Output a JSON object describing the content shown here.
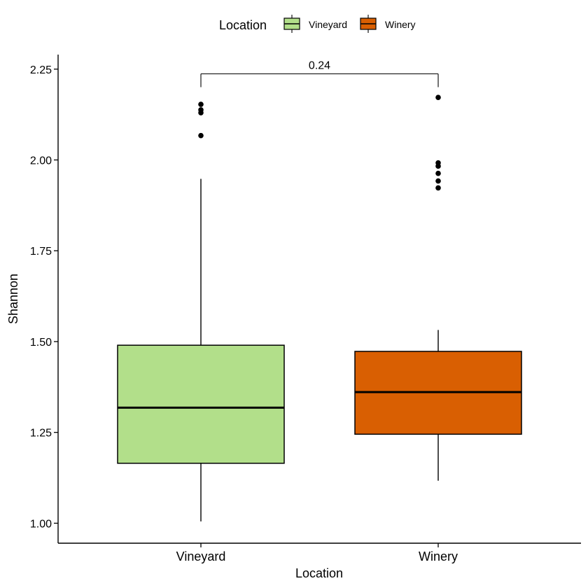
{
  "chart_data": {
    "type": "boxplot",
    "xlabel": "Location",
    "ylabel": "Shannon",
    "ylim": [
      0.945,
      2.29
    ],
    "y_ticks": [
      1.0,
      1.25,
      1.5,
      1.75,
      2.0,
      2.25
    ],
    "y_tick_labels": [
      "1.00",
      "1.25",
      "1.50",
      "1.75",
      "2.00",
      "2.25"
    ],
    "categories": [
      "Vineyard",
      "Winery"
    ],
    "legend": {
      "title": "Location",
      "position": "top",
      "entries": [
        "Vineyard",
        "Winery"
      ]
    },
    "series": [
      {
        "name": "Vineyard",
        "color": "#b2df8a",
        "whisker_low": 1.005,
        "q1": 1.165,
        "median": 1.318,
        "q3": 1.49,
        "whisker_high": 1.948,
        "outliers": [
          2.067,
          2.13,
          2.138,
          2.153
        ]
      },
      {
        "name": "Winery",
        "color": "#d95f02",
        "whisker_low": 1.117,
        "q1": 1.245,
        "median": 1.361,
        "q3": 1.473,
        "whisker_high": 1.532,
        "outliers": [
          1.923,
          1.942,
          1.963,
          1.983,
          1.992,
          2.172
        ]
      }
    ],
    "comparison": {
      "label": "0.24",
      "between": [
        "Vineyard",
        "Winery"
      ],
      "y": 2.237
    },
    "grid": false
  }
}
